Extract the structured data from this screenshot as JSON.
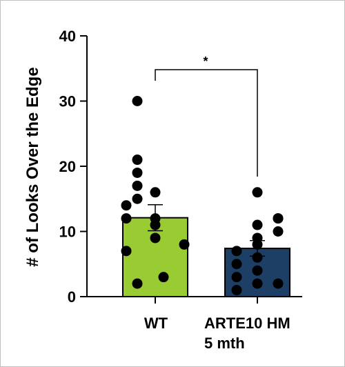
{
  "chart_data": {
    "type": "bar",
    "ylabel": "# of Looks Over the Edge",
    "xlabel": "",
    "title": "",
    "ylim": [
      0,
      40
    ],
    "yticks": [
      "0",
      "10",
      "20",
      "30",
      "40"
    ],
    "categories": [
      "WT",
      "ARTE10 HM"
    ],
    "category_sublabels": [
      "",
      "5 mth"
    ],
    "values": [
      12.1,
      7.4
    ],
    "errors": [
      2.0,
      1.2
    ],
    "bar_colors": [
      "#99cc33",
      "#1d3f66"
    ],
    "points": [
      [
        14,
        12,
        7,
        2,
        15,
        17,
        19,
        21,
        30,
        16,
        12,
        11,
        9,
        3,
        8
      ],
      [
        1,
        3,
        5,
        7,
        9,
        11,
        2,
        4,
        6,
        8,
        10,
        12,
        16,
        12,
        2
      ]
    ],
    "significance": {
      "label": "*",
      "between": [
        0,
        1
      ]
    }
  }
}
